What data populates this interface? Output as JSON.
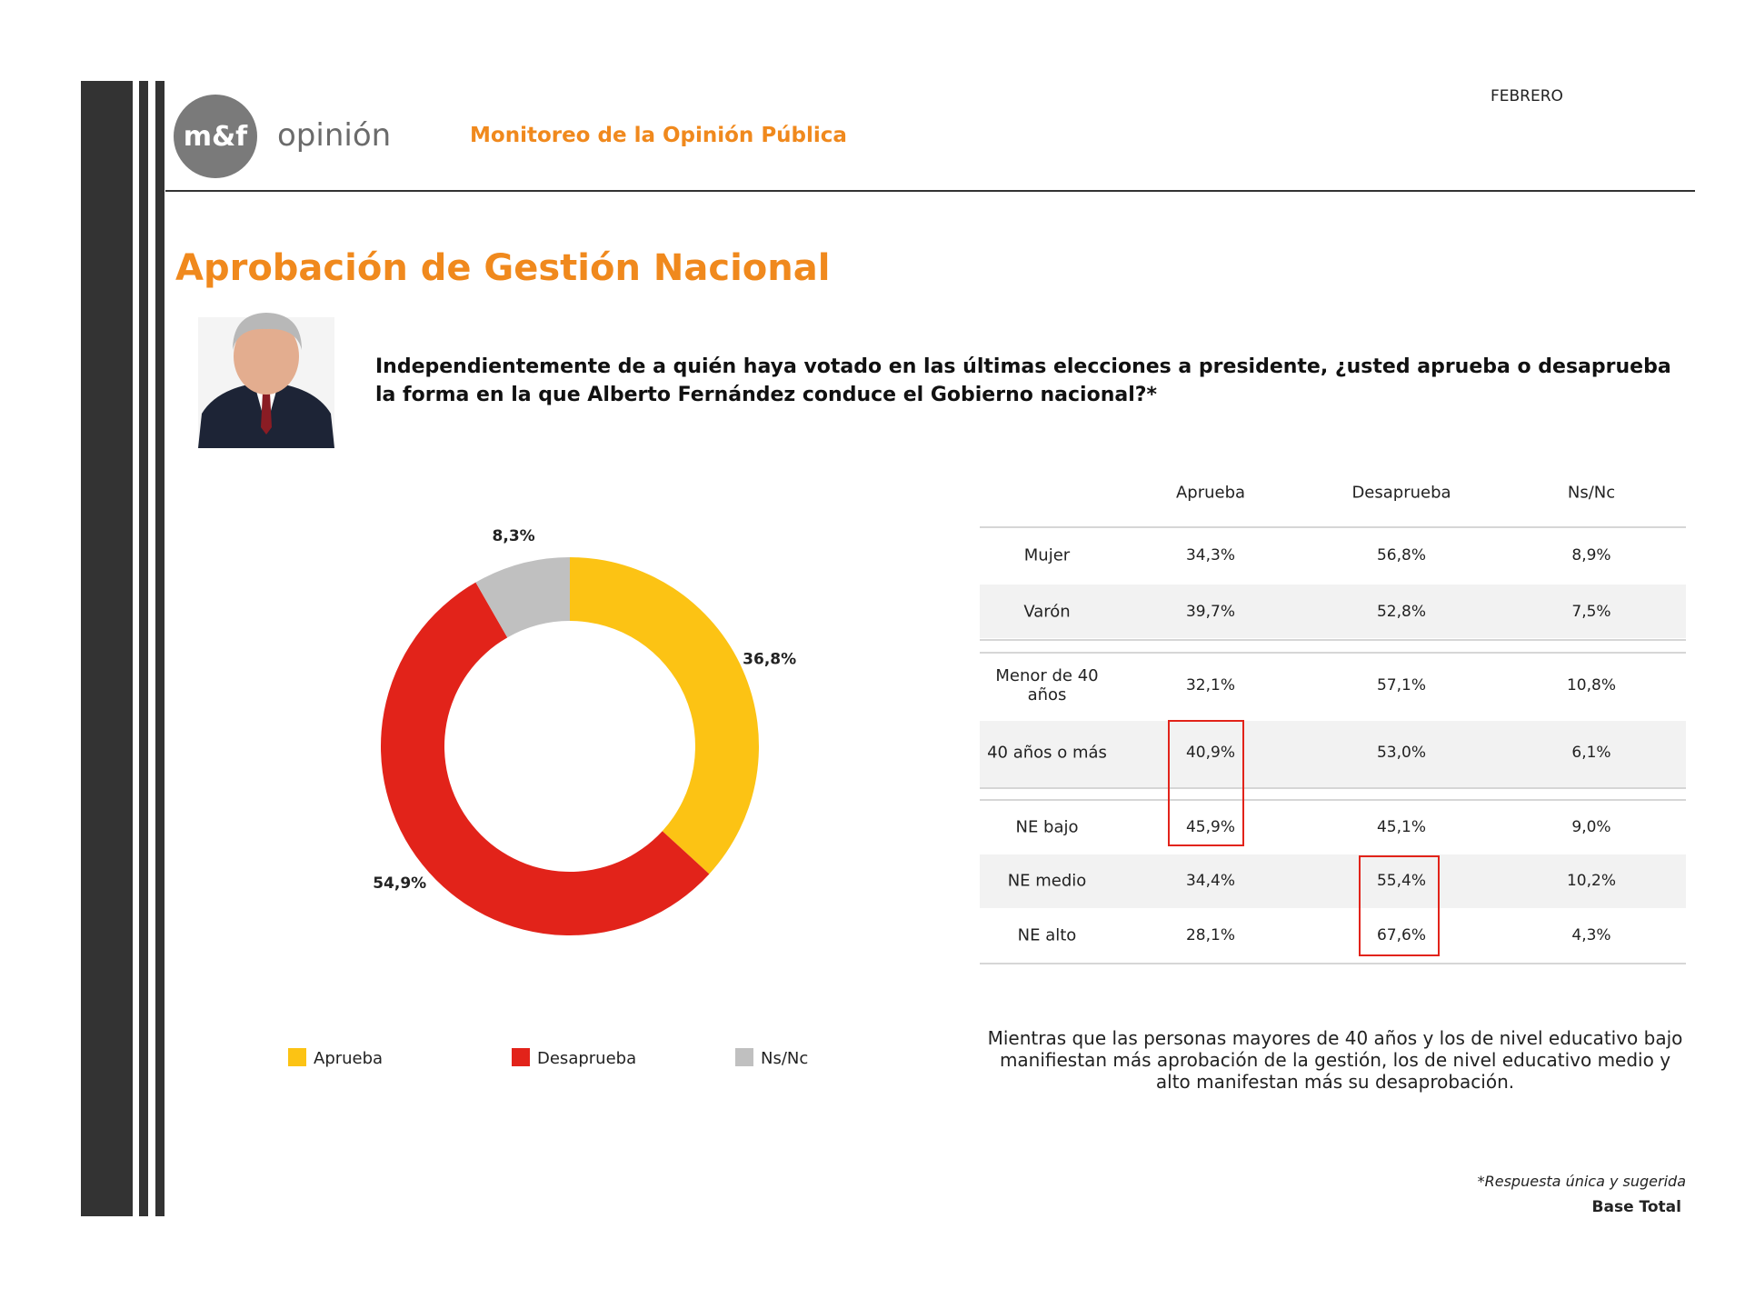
{
  "header": {
    "brand": "m&f",
    "brand_word": "opinión",
    "subtitle": "Monitoreo de la Opinión Pública",
    "month": "FEBRERO"
  },
  "title": "Aprobación de Gestión Nacional",
  "question": "Independientemente de a quién haya votado en las últimas elecciones a presidente, ¿usted aprueba o desaprueba la forma en la que Alberto Fernández conduce el Gobierno nacional?*",
  "chart_data": {
    "type": "pie",
    "donut": true,
    "categories": [
      "Aprueba",
      "Desaprueba",
      "Ns/Nc"
    ],
    "values": [
      36.8,
      54.9,
      8.3
    ],
    "value_labels": [
      "36,8%",
      "54,9%",
      "8,3%"
    ],
    "colors": [
      "#fcc314",
      "#e2231a",
      "#c0c0c0"
    ],
    "legend": "bottom"
  },
  "table": {
    "columns": [
      "Aprueba",
      "Desaprueba",
      "Ns/Nc"
    ],
    "rows": [
      {
        "label": "Mujer",
        "values": [
          "34,3%",
          "56,8%",
          "8,9%"
        ]
      },
      {
        "label": "Varón",
        "values": [
          "39,7%",
          "52,8%",
          "7,5%"
        ]
      },
      {
        "label": "Menor de 40 años",
        "values": [
          "32,1%",
          "57,1%",
          "10,8%"
        ]
      },
      {
        "label": "40 años o más",
        "values": [
          "40,9%",
          "53,0%",
          "6,1%"
        ]
      },
      {
        "label": "NE bajo",
        "values": [
          "45,9%",
          "45,1%",
          "9,0%"
        ]
      },
      {
        "label": "NE medio",
        "values": [
          "34,4%",
          "55,4%",
          "10,2%"
        ]
      },
      {
        "label": "NE alto",
        "values": [
          "28,1%",
          "67,6%",
          "4,3%"
        ]
      }
    ]
  },
  "note": "Mientras que las personas mayores de 40 años y los de nivel educativo bajo manifiestan más aprobación de la gestión, los de nivel educativo medio y alto manifestan más su desaprobación.",
  "footnote": "*Respuesta única y sugerida",
  "base": "Base Total"
}
